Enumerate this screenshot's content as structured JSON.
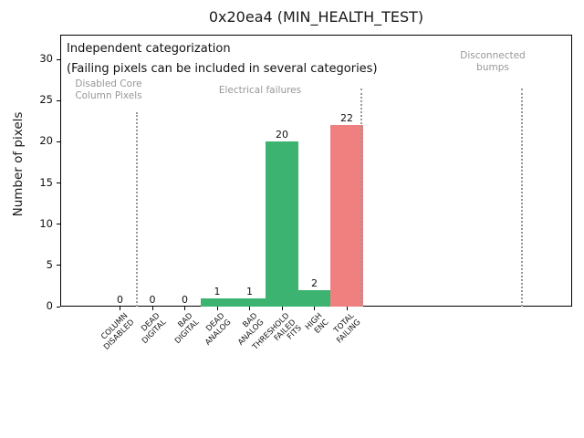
{
  "chart_data": {
    "type": "bar",
    "title": "0x20ea4 (MIN_HEALTH_TEST)",
    "ylabel": "Number of pixels",
    "xlabel": "",
    "ylim": [
      0,
      33
    ],
    "yticks": [
      0,
      5,
      10,
      15,
      20,
      25,
      30
    ],
    "grid": false,
    "legend": false,
    "categories": [
      [
        "COLUMN",
        "DISABLED"
      ],
      [
        "DEAD",
        "DIGITAL"
      ],
      [
        "BAD",
        "DIGITAL"
      ],
      [
        "DEAD",
        "ANALOG"
      ],
      [
        "BAD",
        "ANALOG"
      ],
      [
        "THRESHOLD",
        "FAILED",
        "FITS"
      ],
      [
        "HIGH",
        "ENC"
      ],
      [
        "TOTAL",
        "FAILING"
      ]
    ],
    "values": [
      0,
      0,
      0,
      1,
      1,
      20,
      2,
      22
    ],
    "value_labels": [
      "0",
      "0",
      "0",
      "1",
      "1",
      "20",
      "2",
      "22"
    ],
    "bar_colors": [
      "#3CB371",
      "#3CB371",
      "#3CB371",
      "#3CB371",
      "#3CB371",
      "#3CB371",
      "#3CB371",
      "#F08080"
    ],
    "annotation": {
      "line1": "Independent categorization",
      "line2": "(Failing pixels can be included in several categories)"
    },
    "sections": [
      {
        "label_lines": [
          "Disabled Core",
          "Column Pixels"
        ]
      },
      {
        "label_lines": [
          "Electrical failures"
        ]
      },
      {
        "label_lines": [
          "Disconnected",
          "bumps"
        ]
      }
    ],
    "colors": {
      "bar_green": "#3CB371",
      "bar_red": "#F08080",
      "section_text": "#979797",
      "separator": "#999999",
      "axis": "#000000"
    }
  }
}
